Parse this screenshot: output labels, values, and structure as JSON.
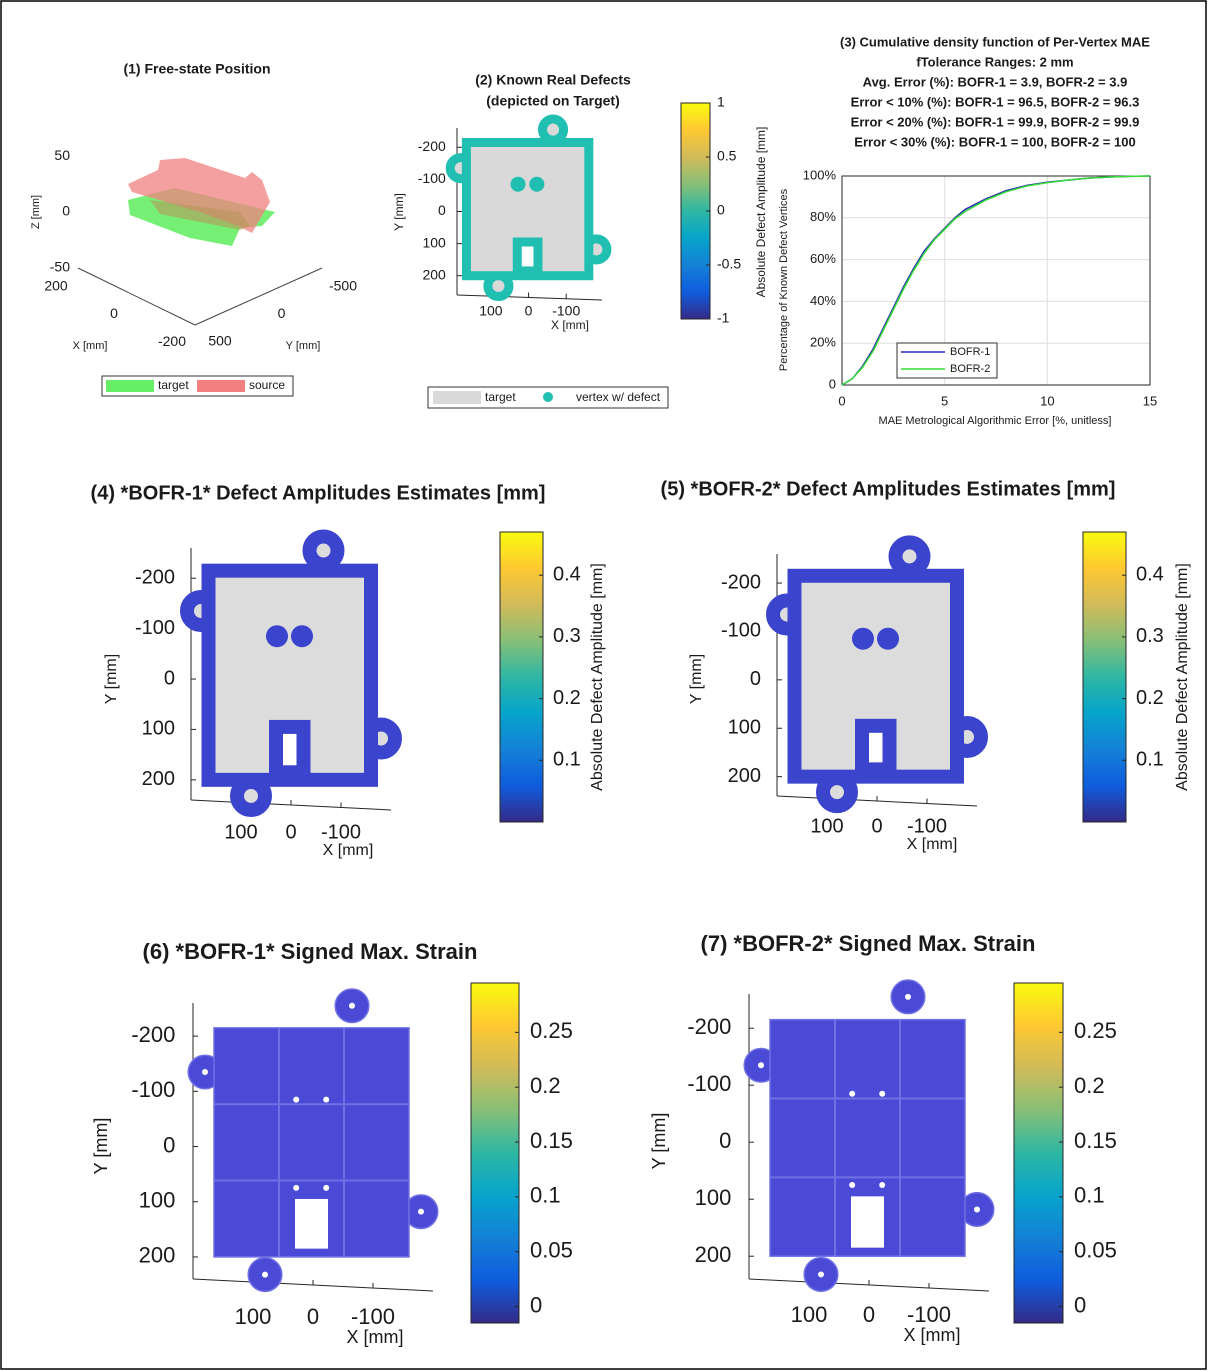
{
  "chart_data": [
    {
      "type": "scatter3d",
      "title": "(1)  Free-state Position",
      "xlabel": "X [mm]",
      "ylabel": "Y [mm]",
      "zlabel": "Z [mm]",
      "xlim": [
        250,
        -250
      ],
      "xticks": [
        200,
        0,
        -200
      ],
      "ylim": [
        600,
        -600
      ],
      "yticks": [
        500,
        0,
        -500
      ],
      "zlim": [
        -60,
        60
      ],
      "zticks": [
        -50,
        0,
        50
      ],
      "series": [
        {
          "name": "target",
          "color": "#66ee66"
        },
        {
          "name": "source",
          "color": "#f28080"
        }
      ]
    },
    {
      "type": "mesh",
      "title": [
        "(2)  Known Real Defects",
        "(depicted on Target)"
      ],
      "xlabel": "X [mm]",
      "ylabel": "Y [mm]",
      "xlim": [
        190,
        -195
      ],
      "xticks": [
        100,
        0,
        -100
      ],
      "ylim": [
        260,
        -260
      ],
      "yticks": [
        -200,
        -100,
        0,
        100,
        200
      ],
      "plate_color": "#d9d9d9",
      "edge_color": "#21bfb2",
      "colorbar": {
        "label": "Absolute  Defect  Amplitude [mm]",
        "clim": [
          -1,
          1
        ],
        "ticks": [
          1,
          0.5,
          0,
          -0.5,
          -1
        ],
        "colormap": "parula"
      },
      "legend": [
        {
          "name": "target",
          "color": "#d9d9d9"
        },
        {
          "name": "vertex w/ defect",
          "color": "#21bfb2"
        }
      ]
    },
    {
      "type": "line",
      "title": [
        "(3)  Cumulative density function of Per-Vertex MAE",
        "fTolerance Ranges: 2 mm",
        "Avg. Error (%):  BOFR-1 = 3.9,  BOFR-2 = 3.9",
        "Error < 10% (%):  BOFR-1 = 96.5,  BOFR-2 = 96.3",
        "Error < 20% (%):  BOFR-1 = 99.9,  BOFR-2 = 99.9",
        "Error < 30% (%):  BOFR-1 = 100,  BOFR-2 = 100"
      ],
      "xlabel": "MAE Metrological Algorithmic Error [%, unitless]",
      "ylabel": "Percentage  of  Known  Defect  Vertices",
      "x": [
        0,
        0.5,
        1,
        1.5,
        2,
        2.5,
        3,
        3.5,
        4,
        4.5,
        5,
        5.5,
        6,
        7,
        8,
        9,
        10,
        11,
        12,
        13,
        14,
        15
      ],
      "series": [
        {
          "name": "BOFR-1",
          "color": "#2b2bb5",
          "values": [
            0,
            3,
            9,
            17,
            27,
            37,
            47,
            56,
            64,
            70,
            75,
            80,
            84,
            89,
            93,
            95.5,
            97,
            98,
            99,
            99.5,
            99.8,
            100
          ]
        },
        {
          "name": "BOFR-2",
          "color": "#33dd33",
          "values": [
            0,
            3,
            8.5,
            16,
            26,
            36,
            46,
            55,
            63,
            69.5,
            74.5,
            79.5,
            83,
            88.5,
            92.5,
            95.2,
            96.8,
            98,
            99,
            99.5,
            99.8,
            100
          ]
        }
      ],
      "xlim": [
        0,
        15
      ],
      "xticks": [
        0,
        5,
        10,
        15
      ],
      "ylim": [
        0,
        100
      ],
      "yticks": [
        0,
        {
          "value": 20,
          "label": "20%"
        },
        {
          "value": 40,
          "label": "40%"
        },
        {
          "value": 60,
          "label": "60%"
        },
        {
          "value": 80,
          "label": "80%"
        },
        {
          "value": 100,
          "label": "100%"
        }
      ],
      "grid": true
    },
    {
      "type": "mesh",
      "title": "(4)  *BOFR-1*  Defect Amplitudes Estimates [mm]",
      "xlabel": "X [mm]",
      "ylabel": "Y [mm]",
      "xlim": [
        200,
        -200
      ],
      "xticks": [
        100,
        0,
        -100
      ],
      "ylim": [
        240,
        -260
      ],
      "yticks": [
        -200,
        -100,
        0,
        100,
        200
      ],
      "plate_color": "#dcdcdc",
      "edge_color": "#3b44cc",
      "colorbar": {
        "label": "Absolute  Defect  Amplitude [mm]",
        "clim": [
          0,
          0.47
        ],
        "ticks": [
          0.1,
          0.2,
          0.3,
          0.4
        ],
        "colormap": "parula"
      }
    },
    {
      "type": "mesh",
      "title": "(5)  *BOFR-2*  Defect Amplitudes Estimates [mm]",
      "xlabel": "X [mm]",
      "ylabel": "Y [mm]",
      "xlim": [
        200,
        -200
      ],
      "xticks": [
        100,
        0,
        -100
      ],
      "ylim": [
        240,
        -260
      ],
      "yticks": [
        -200,
        -100,
        0,
        100,
        200
      ],
      "plate_color": "#dcdcdc",
      "edge_color": "#3b44cc",
      "colorbar": {
        "label": "Absolute  Defect  Amplitude [mm]",
        "clim": [
          0,
          0.47
        ],
        "ticks": [
          0.1,
          0.2,
          0.3,
          0.4
        ],
        "colormap": "parula"
      }
    },
    {
      "type": "mesh",
      "title": "(6)  *BOFR-1*  Signed Max. Strain",
      "xlabel": "X [mm]",
      "ylabel": "Y [mm]",
      "xlim": [
        200,
        -200
      ],
      "xticks": [
        100,
        0,
        -100
      ],
      "ylim": [
        240,
        -260
      ],
      "yticks": [
        -200,
        -100,
        0,
        100,
        200
      ],
      "plate_color": "#4a4ad6",
      "edge_color": "#7070e4",
      "colorbar": {
        "clim": [
          -0.015,
          0.295
        ],
        "ticks": [
          0,
          0.05,
          0.1,
          0.15,
          0.2,
          0.25
        ],
        "colormap": "parula"
      }
    },
    {
      "type": "mesh",
      "title": "(7)  *BOFR-2*  Signed Max. Strain",
      "xlabel": "X [mm]",
      "ylabel": "Y [mm]",
      "xlim": [
        200,
        -200
      ],
      "xticks": [
        100,
        0,
        -100
      ],
      "ylim": [
        240,
        -260
      ],
      "yticks": [
        -200,
        -100,
        0,
        100,
        200
      ],
      "plate_color": "#4a4ad6",
      "edge_color": "#7070e4",
      "colorbar": {
        "clim": [
          -0.015,
          0.295
        ],
        "ticks": [
          0,
          0.05,
          0.1,
          0.15,
          0.2,
          0.25
        ],
        "colormap": "parula"
      }
    }
  ]
}
